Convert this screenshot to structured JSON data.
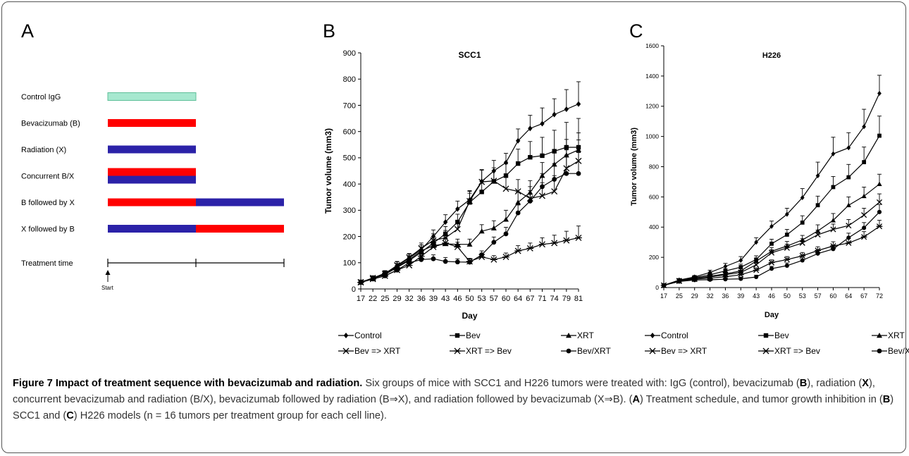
{
  "panel_a": {
    "letter": "A",
    "rows": [
      {
        "label": "Control IgG",
        "segments": [
          {
            "color": "#a6e8cf",
            "border": "#5fbf99",
            "start": 0,
            "end": 1
          }
        ]
      },
      {
        "label": "Bevacizumab (B)",
        "segments": [
          {
            "color": "#ff0000",
            "start": 0,
            "end": 1
          }
        ]
      },
      {
        "label": "Radiation (X)",
        "segments": [
          {
            "color": "#2b22a8",
            "start": 0,
            "end": 1
          }
        ]
      },
      {
        "label": "Concurrent B/X",
        "segments": [
          {
            "color": "#ff0000",
            "start": 0,
            "end": 1,
            "half": "top"
          },
          {
            "color": "#2b22a8",
            "start": 0,
            "end": 1,
            "half": "bottom"
          }
        ]
      },
      {
        "label": "B followed by X",
        "segments": [
          {
            "color": "#ff0000",
            "start": 0,
            "end": 1
          },
          {
            "color": "#2b22a8",
            "start": 1,
            "end": 2
          }
        ]
      },
      {
        "label": "X followed by B",
        "segments": [
          {
            "color": "#2b22a8",
            "start": 0,
            "end": 1
          },
          {
            "color": "#ff0000",
            "start": 1,
            "end": 2
          }
        ]
      }
    ],
    "time_label": "Treatment time",
    "start_label": "Start"
  },
  "chart_data": [
    {
      "panel": "B",
      "type": "line",
      "title": "SCC1",
      "xlabel": "Day",
      "ylabel": "Tumor volume (mm3)",
      "x": [
        17,
        22,
        25,
        29,
        32,
        36,
        39,
        43,
        46,
        50,
        53,
        57,
        60,
        64,
        67,
        71,
        74,
        79,
        81
      ],
      "ylim": [
        0,
        900
      ],
      "yticks": [
        0,
        100,
        200,
        300,
        400,
        500,
        600,
        700,
        800,
        900
      ],
      "series": [
        {
          "name": "Control",
          "marker": "diamond",
          "values": [
            25,
            42,
            60,
            88,
            118,
            150,
            200,
            255,
            305,
            340,
            410,
            450,
            482,
            565,
            612,
            630,
            665,
            685,
            705
          ],
          "errors": [
            8,
            8,
            10,
            15,
            15,
            18,
            25,
            28,
            30,
            32,
            45,
            40,
            35,
            45,
            50,
            60,
            60,
            75,
            85
          ]
        },
        {
          "name": "Bev",
          "marker": "square",
          "values": [
            26,
            40,
            55,
            82,
            108,
            140,
            175,
            210,
            255,
            330,
            370,
            410,
            432,
            478,
            502,
            508,
            525,
            540,
            540
          ],
          "errors": [
            8,
            8,
            10,
            15,
            15,
            20,
            25,
            28,
            30,
            35,
            40,
            40,
            45,
            55,
            60,
            70,
            80,
            95,
            110
          ]
        },
        {
          "name": "XRT",
          "marker": "triangle",
          "values": [
            25,
            40,
            58,
            85,
            112,
            145,
            165,
            172,
            170,
            170,
            220,
            232,
            265,
            330,
            368,
            432,
            475,
            510,
            530
          ],
          "errors": [
            8,
            8,
            10,
            12,
            15,
            15,
            18,
            20,
            20,
            20,
            25,
            28,
            35,
            40,
            45,
            50,
            55,
            60,
            65
          ]
        },
        {
          "name": "Bev => XRT",
          "marker": "x",
          "values": [
            26,
            42,
            58,
            90,
            120,
            155,
            185,
            195,
            228,
            335,
            408,
            412,
            382,
            372,
            345,
            355,
            372,
            460,
            488
          ],
          "errors": [
            8,
            8,
            10,
            15,
            15,
            20,
            25,
            28,
            30,
            40,
            45,
            50,
            45,
            45,
            45,
            50,
            60,
            70,
            80
          ]
        },
        {
          "name": "XRT => Bev",
          "marker": "asterisk",
          "values": [
            25,
            38,
            50,
            72,
            90,
            125,
            160,
            175,
            160,
            105,
            122,
            112,
            122,
            145,
            155,
            170,
            175,
            185,
            195
          ],
          "errors": [
            5,
            6,
            8,
            10,
            12,
            15,
            18,
            20,
            18,
            12,
            15,
            15,
            15,
            20,
            20,
            25,
            30,
            35,
            45
          ]
        },
        {
          "name": "Bev/XRT",
          "marker": "circle",
          "values": [
            25,
            38,
            50,
            72,
            100,
            112,
            115,
            105,
            103,
            102,
            130,
            178,
            210,
            290,
            335,
            390,
            418,
            440,
            440
          ],
          "errors": [
            5,
            6,
            8,
            10,
            12,
            15,
            15,
            15,
            12,
            12,
            15,
            20,
            25,
            30,
            40,
            50,
            60,
            70,
            80
          ]
        }
      ]
    },
    {
      "panel": "C",
      "type": "line",
      "title": "H226",
      "xlabel": "Day",
      "ylabel": "Tumor volume (mm3)",
      "x": [
        17,
        25,
        29,
        32,
        36,
        39,
        43,
        46,
        50,
        53,
        57,
        60,
        64,
        67,
        72
      ],
      "ylim": [
        0,
        1600
      ],
      "yticks": [
        0,
        200,
        400,
        600,
        800,
        1000,
        1200,
        1400,
        1600
      ],
      "series": [
        {
          "name": "Control",
          "marker": "diamond",
          "values": [
            15,
            50,
            70,
            100,
            140,
            180,
            300,
            405,
            485,
            595,
            740,
            885,
            925,
            1065,
            1285
          ],
          "errors": [
            5,
            8,
            10,
            15,
            20,
            25,
            30,
            35,
            40,
            60,
            90,
            110,
            100,
            115,
            120
          ]
        },
        {
          "name": "Bev",
          "marker": "square",
          "values": [
            15,
            48,
            65,
            85,
            110,
            135,
            185,
            290,
            350,
            430,
            545,
            665,
            730,
            830,
            1005
          ],
          "errors": [
            5,
            8,
            10,
            12,
            15,
            20,
            25,
            30,
            35,
            45,
            60,
            70,
            85,
            100,
            130
          ]
        },
        {
          "name": "XRT",
          "marker": "triangle",
          "values": [
            15,
            45,
            60,
            75,
            90,
            110,
            175,
            240,
            275,
            315,
            375,
            445,
            545,
            605,
            685
          ],
          "errors": [
            5,
            8,
            10,
            10,
            12,
            15,
            20,
            25,
            30,
            30,
            40,
            45,
            55,
            60,
            65
          ]
        },
        {
          "name": "Bev => XRT",
          "marker": "x",
          "values": [
            15,
            45,
            60,
            70,
            85,
            100,
            150,
            230,
            262,
            295,
            350,
            385,
            410,
            480,
            565
          ],
          "errors": [
            5,
            6,
            8,
            10,
            12,
            15,
            18,
            20,
            25,
            28,
            30,
            35,
            40,
            45,
            55
          ]
        },
        {
          "name": "XRT => Bev",
          "marker": "asterisk",
          "values": [
            15,
            42,
            55,
            62,
            72,
            85,
            115,
            165,
            185,
            210,
            245,
            275,
            295,
            335,
            405
          ],
          "errors": [
            5,
            5,
            6,
            8,
            10,
            12,
            15,
            18,
            20,
            22,
            25,
            28,
            30,
            35,
            40
          ]
        },
        {
          "name": "Bev/XRT",
          "marker": "circle",
          "values": [
            15,
            40,
            50,
            52,
            55,
            58,
            70,
            125,
            145,
            180,
            225,
            255,
            330,
            395,
            500
          ],
          "errors": [
            5,
            5,
            6,
            6,
            8,
            10,
            12,
            15,
            18,
            20,
            22,
            25,
            30,
            35,
            50
          ]
        }
      ]
    }
  ],
  "caption": {
    "title": "Figure 7 Impact of treatment sequence with bevacizumab and radiation.",
    "parts": [
      {
        "t": " Six groups of mice with SCC1 and H226 tumors were treated with: IgG (control), bevacizumab ("
      },
      {
        "t": "B",
        "b": true
      },
      {
        "t": "), radiation ("
      },
      {
        "t": "X",
        "b": true
      },
      {
        "t": "), concurrent bevacizumab and radiation (B/X), bevacizumab followed by radiation (B⇒X), and radiation followed by bevacizumab (X⇒B). ("
      },
      {
        "t": "A",
        "b": true
      },
      {
        "t": ") Treatment schedule, and tumor growth inhibition in ("
      },
      {
        "t": "B",
        "b": true
      },
      {
        "t": ") SCC1 and ("
      },
      {
        "t": "C",
        "b": true
      },
      {
        "t": ") H226 models (n = 16 tumors per treatment group for each cell line)."
      }
    ]
  }
}
